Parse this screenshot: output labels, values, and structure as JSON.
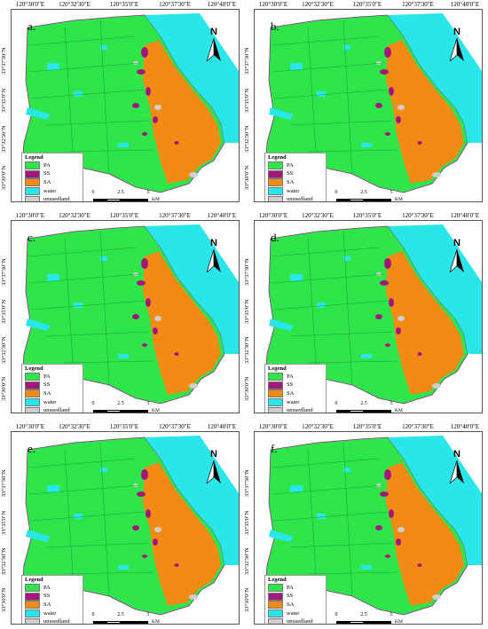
{
  "figure": {
    "panels": [
      {
        "label": "a."
      },
      {
        "label": "b."
      },
      {
        "label": "c."
      },
      {
        "label": "d."
      },
      {
        "label": "e."
      },
      {
        "label": "f."
      }
    ],
    "longitude_ticks": [
      "120°30'0\"E",
      "120°32'30\"E",
      "120°35'0\"E",
      "120°37'30\"E",
      "120°40'0\"E"
    ],
    "latitude_ticks": [
      "33°37'30\"N",
      "33°35'0\"N",
      "33°32'30\"N",
      "33°30'0\"N"
    ],
    "north_label": "N",
    "legend": {
      "title": "Legend",
      "items": [
        {
          "label": "PA",
          "color": "#2ee64a"
        },
        {
          "label": "SS",
          "color": "#a0197a"
        },
        {
          "label": "SA",
          "color": "#f28a16"
        },
        {
          "label": "water",
          "color": "#29e6ea"
        },
        {
          "label": "unusedland",
          "color": "#cfcfcf"
        }
      ]
    },
    "scale_bar": {
      "ticks": [
        "0",
        "2.5",
        "5"
      ],
      "unit": "KM"
    }
  }
}
